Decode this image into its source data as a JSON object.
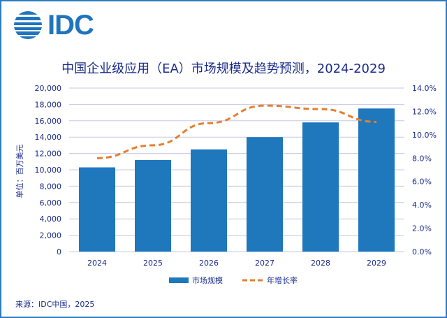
{
  "logo": {
    "text": "IDC"
  },
  "chart_data": {
    "type": "bar+line",
    "title": "中国企业级应用（EA）市场规模及趋势预测，2024-2029",
    "ylabel": "单位：百万美元",
    "categories": [
      "2024",
      "2025",
      "2026",
      "2027",
      "2028",
      "2029"
    ],
    "series": [
      {
        "name": "市场规模",
        "type": "bar",
        "axis": "left",
        "color": "#1f77bc",
        "values": [
          10300,
          11200,
          12500,
          14000,
          15800,
          17500
        ]
      },
      {
        "name": "年增长率",
        "type": "line",
        "style": "dashed",
        "axis": "right",
        "color": "#e57f2e",
        "values": [
          8.0,
          9.1,
          11.0,
          12.5,
          12.2,
          11.1
        ]
      }
    ],
    "ylim": [
      0,
      20000
    ],
    "yticks": [
      "0",
      "2,000",
      "4,000",
      "6,000",
      "8,000",
      "10,000",
      "12,000",
      "14,000",
      "16,000",
      "18,000",
      "20,000"
    ],
    "y2lim": [
      0,
      14
    ],
    "y2ticks": [
      "0.0%",
      "2.0%",
      "4.0%",
      "6.0%",
      "8.0%",
      "10.0%",
      "12.0%",
      "14.0%"
    ],
    "grid": true,
    "legend_position": "bottom"
  },
  "source": "来源：IDC中国，2025"
}
